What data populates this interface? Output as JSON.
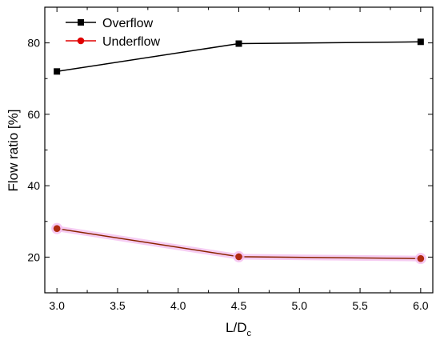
{
  "chart_data": {
    "type": "line",
    "xlabel": "L/D",
    "xlabel_sub": "c",
    "ylabel": "Flow ratio [%]",
    "xlim": [
      2.9,
      6.1
    ],
    "ylim": [
      10,
      90
    ],
    "xticks": [
      "3.0",
      "3.5",
      "4.0",
      "4.5",
      "5.0",
      "5.5",
      "6.0"
    ],
    "yticks": [
      "20",
      "40",
      "60",
      "80"
    ],
    "legend_position": "top-left",
    "grid": false,
    "series": [
      {
        "name": "Overflow",
        "marker": "square",
        "color": "#000000",
        "x": [
          3.0,
          4.5,
          6.0
        ],
        "y": [
          72,
          79.8,
          80.3
        ]
      },
      {
        "name": "Underflow",
        "marker": "circle",
        "color": "#e00000",
        "line_color": "#8b2500",
        "x": [
          3.0,
          4.5,
          6.0
        ],
        "y": [
          28,
          20.1,
          19.6
        ]
      }
    ]
  }
}
